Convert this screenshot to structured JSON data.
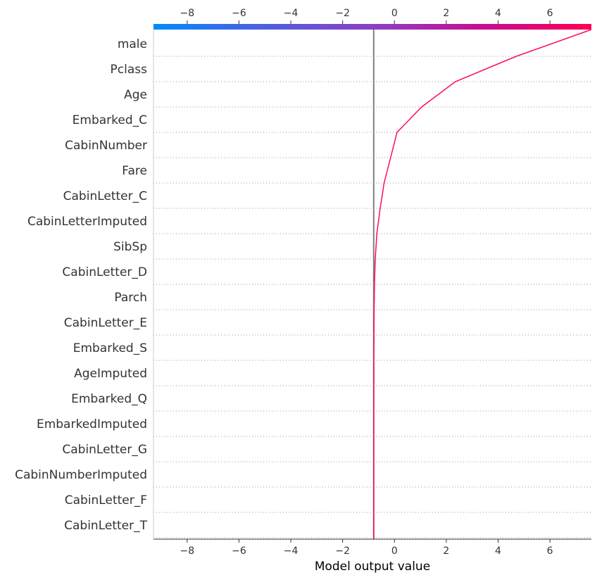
{
  "chart_data": {
    "type": "line",
    "title": "",
    "xlabel": "Model output value",
    "ylabel": "",
    "xlim": [
      -9.3,
      7.6
    ],
    "x_ticks": [
      -8,
      -6,
      -4,
      -2,
      0,
      2,
      4,
      6
    ],
    "x_tick_labels": [
      "−8",
      "−6",
      "−4",
      "−2",
      "0",
      "2",
      "4",
      "6"
    ],
    "base_value": -0.8,
    "features": [
      "male",
      "Pclass",
      "Age",
      "Embarked_C",
      "CabinNumber",
      "Fare",
      "CabinLetter_C",
      "CabinLetterImputed",
      "SibSp",
      "CabinLetter_D",
      "Parch",
      "CabinLetter_E",
      "Embarked_S",
      "AgeImputed",
      "Embarked_Q",
      "EmbarkedImputed",
      "CabinLetter_G",
      "CabinNumberImputed",
      "CabinLetter_F",
      "CabinLetter_T"
    ],
    "series": [
      {
        "color": "#ff0d57",
        "values": [
          7.6,
          4.7,
          2.35,
          1.05,
          0.1,
          -0.15,
          -0.4,
          -0.55,
          -0.68,
          -0.74,
          -0.77,
          -0.785,
          -0.79,
          -0.795,
          -0.798,
          -0.8,
          -0.8,
          -0.8,
          -0.8,
          -0.8,
          -0.8
        ]
      }
    ],
    "colorbar": {
      "colors": [
        "#008bfb",
        "#4f5ee0",
        "#8c3fc2",
        "#c50d94",
        "#ff0052"
      ]
    },
    "grid": "dotted horizontal separators",
    "legend": "none"
  }
}
